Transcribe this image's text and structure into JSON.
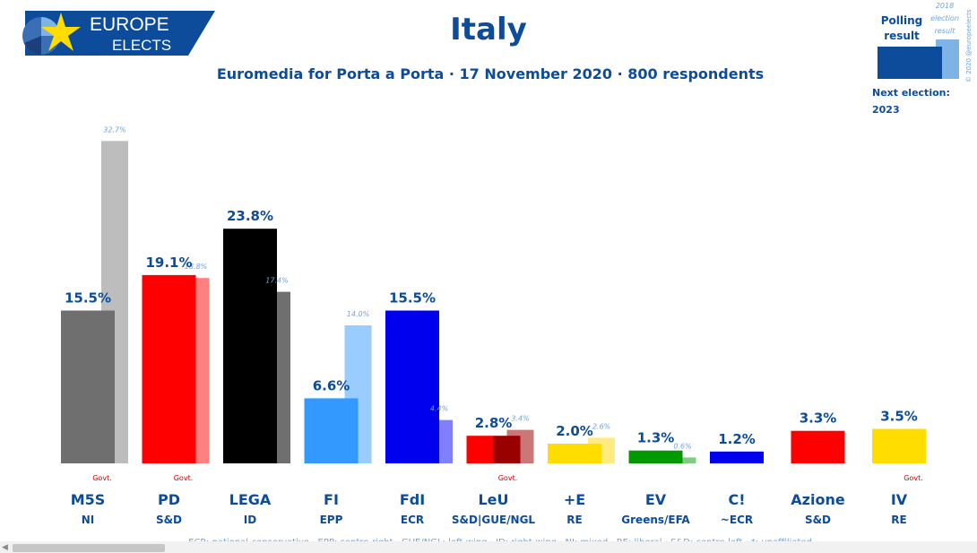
{
  "logo": {
    "line1": "EUROPE",
    "line2": "ELECTS"
  },
  "header": {
    "title": "Italy",
    "subtitle": "Euromedia for Porta a Porta · 17 November 2020 · 800 respondents"
  },
  "legend": {
    "polling_label_1": "Polling",
    "polling_label_2": "result",
    "election_label_1": "2018",
    "election_label_2": "election",
    "election_label_3": "result",
    "copyright": "© 2020 @europeelects",
    "next_election_label": "Next election:",
    "next_election_year": "2023"
  },
  "footnote": "ECR: national-conservative · EPP: centre-right · GUE/NGL: left-wing · ID: right-wing · NI: mixed · RE: liberal · S&D: centre-left · *: unaffiliated",
  "colors": {
    "brand_blue": "#0c4c9a",
    "light_blue": "#6fa3d8",
    "govt_red": "#cc0000"
  },
  "chart_data": {
    "type": "bar",
    "title": "Italy",
    "subtitle": "Euromedia for Porta a Porta · 17 November 2020 · 800 respondents",
    "ylim": [
      0,
      35
    ],
    "series": [
      {
        "name": "Polling result"
      },
      {
        "name": "2018 election result"
      }
    ],
    "parties": [
      {
        "name": "M5S",
        "group": "NI",
        "poll": 15.5,
        "poll_label": "15.5%",
        "prev": 32.7,
        "prev_label": "32.7%",
        "govt": "Govt.",
        "color": "#6f6f6f",
        "prev_color": "#bdbdbd"
      },
      {
        "name": "PD",
        "group": "S&D",
        "poll": 19.1,
        "poll_label": "19.1%",
        "prev": 18.8,
        "prev_label": "18.8%",
        "govt": "Govt.",
        "color": "#ff0000",
        "prev_color": "#ff8080"
      },
      {
        "name": "LEGA",
        "group": "ID",
        "poll": 23.8,
        "poll_label": "23.8%",
        "prev": 17.4,
        "prev_label": "17.4%",
        "govt": "",
        "color": "#000000",
        "prev_color": "#6f6f6f"
      },
      {
        "name": "FI",
        "group": "EPP",
        "poll": 6.6,
        "poll_label": "6.6%",
        "prev": 14.0,
        "prev_label": "14.0%",
        "govt": "",
        "color": "#3399ff",
        "prev_color": "#99ccff"
      },
      {
        "name": "FdI",
        "group": "ECR",
        "poll": 15.5,
        "poll_label": "15.5%",
        "prev": 4.4,
        "prev_label": "4.4%",
        "govt": "",
        "color": "#0000ee",
        "prev_color": "#8080ff"
      },
      {
        "name": "LeU",
        "group": "S&D|GUE/NGL",
        "poll": 2.8,
        "poll_label": "2.8%",
        "prev": 3.4,
        "prev_label": "3.4%",
        "govt": "Govt.",
        "color": "#ff0000",
        "color2": "#990000",
        "prev_color": "#cc7777"
      },
      {
        "name": "+E",
        "group": "RE",
        "poll": 2.0,
        "poll_label": "2.0%",
        "prev": 2.6,
        "prev_label": "2.6%",
        "govt": "",
        "color": "#ffdd00",
        "prev_color": "#ffeb80"
      },
      {
        "name": "EV",
        "group": "Greens/EFA",
        "poll": 1.3,
        "poll_label": "1.3%",
        "prev": 0.6,
        "prev_label": "0.6%",
        "govt": "",
        "color": "#009900",
        "prev_color": "#80cc80"
      },
      {
        "name": "C!",
        "group": "~ECR",
        "poll": 1.2,
        "poll_label": "1.2%",
        "prev": null,
        "prev_label": "",
        "govt": "",
        "color": "#0000ee",
        "prev_color": ""
      },
      {
        "name": "Azione",
        "group": "S&D",
        "poll": 3.3,
        "poll_label": "3.3%",
        "prev": null,
        "prev_label": "",
        "govt": "",
        "color": "#ff0000",
        "prev_color": ""
      },
      {
        "name": "IV",
        "group": "RE",
        "poll": 3.5,
        "poll_label": "3.5%",
        "prev": null,
        "prev_label": "",
        "govt": "Govt.",
        "color": "#ffdd00",
        "prev_color": ""
      }
    ]
  }
}
